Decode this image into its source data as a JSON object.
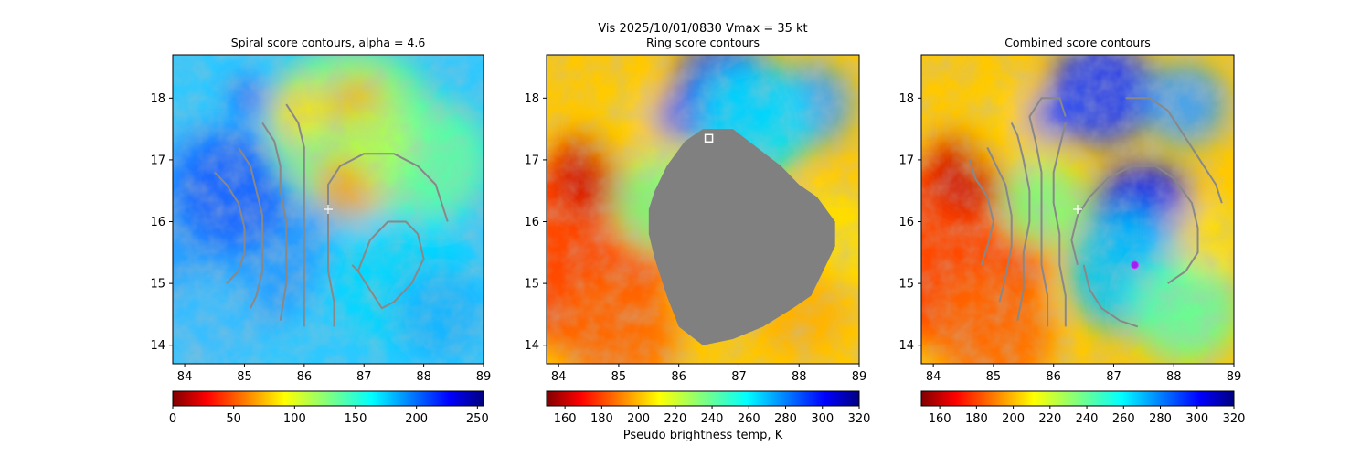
{
  "figure": {
    "suptitle_line1": "Vis  2025/10/01/0830    Vmax = 35 kt"
  },
  "chart_data": [
    {
      "type": "heatmap",
      "title": "Spiral score contours, alpha =  4.6",
      "xlim": [
        83.8,
        89.0
      ],
      "ylim": [
        13.7,
        18.7
      ],
      "xticks": [
        "84",
        "85",
        "86",
        "87",
        "88",
        "89"
      ],
      "yticks": [
        "14",
        "15",
        "16",
        "17",
        "18"
      ],
      "field": "visible/brightness image",
      "colormap": "jet_r",
      "colorbar": {
        "range": [
          0,
          255
        ],
        "ticks": [
          "0",
          "50",
          "100",
          "150",
          "200",
          "250"
        ],
        "label": ""
      },
      "markers": [
        {
          "type": "center_plus",
          "x": 86.4,
          "y": 16.2,
          "color": "#ffffff"
        }
      ],
      "contours": [
        {
          "color": "#888888",
          "points": [
            [
              84.5,
              16.8
            ],
            [
              84.7,
              16.6
            ],
            [
              84.9,
              16.3
            ],
            [
              85.0,
              15.9
            ],
            [
              85.0,
              15.5
            ],
            [
              84.9,
              15.2
            ],
            [
              84.7,
              15.0
            ]
          ]
        },
        {
          "color": "#888888",
          "points": [
            [
              84.9,
              17.2
            ],
            [
              85.1,
              16.9
            ],
            [
              85.2,
              16.5
            ],
            [
              85.3,
              16.1
            ],
            [
              85.3,
              15.6
            ],
            [
              85.3,
              15.2
            ],
            [
              85.2,
              14.8
            ],
            [
              85.1,
              14.6
            ]
          ]
        },
        {
          "color": "#888888",
          "points": [
            [
              85.3,
              17.6
            ],
            [
              85.5,
              17.3
            ],
            [
              85.6,
              16.9
            ],
            [
              85.6,
              16.5
            ],
            [
              85.7,
              16.0
            ],
            [
              85.7,
              15.5
            ],
            [
              85.7,
              15.0
            ],
            [
              85.6,
              14.4
            ]
          ]
        },
        {
          "color": "#888888",
          "points": [
            [
              85.7,
              17.9
            ],
            [
              85.9,
              17.6
            ],
            [
              86.0,
              17.2
            ],
            [
              86.0,
              16.8
            ],
            [
              86.0,
              16.3
            ],
            [
              86.0,
              15.8
            ],
            [
              86.0,
              15.3
            ],
            [
              86.0,
              14.8
            ],
            [
              86.0,
              14.3
            ]
          ]
        },
        {
          "color": "#888888",
          "points": [
            [
              86.5,
              14.3
            ],
            [
              86.5,
              14.7
            ],
            [
              86.4,
              15.2
            ],
            [
              86.4,
              15.7
            ],
            [
              86.4,
              16.2
            ],
            [
              86.4,
              16.6
            ],
            [
              86.6,
              16.9
            ],
            [
              87.0,
              17.1
            ],
            [
              87.5,
              17.1
            ],
            [
              87.9,
              16.9
            ],
            [
              88.2,
              16.6
            ],
            [
              88.3,
              16.3
            ],
            [
              88.4,
              16.0
            ]
          ]
        },
        {
          "color": "#888888",
          "points": [
            [
              86.9,
              15.2
            ],
            [
              87.1,
              15.7
            ],
            [
              87.4,
              16.0
            ],
            [
              87.7,
              16.0
            ],
            [
              87.9,
              15.8
            ],
            [
              88.0,
              15.4
            ],
            [
              87.8,
              15.0
            ],
            [
              87.5,
              14.7
            ],
            [
              87.3,
              14.6
            ],
            [
              87.1,
              14.9
            ],
            [
              86.9,
              15.2
            ],
            [
              86.8,
              15.3
            ]
          ]
        }
      ]
    },
    {
      "type": "heatmap",
      "title": "Ring score contours",
      "xlim": [
        83.8,
        89.0
      ],
      "ylim": [
        13.7,
        18.7
      ],
      "xticks": [
        "84",
        "85",
        "86",
        "87",
        "88",
        "89"
      ],
      "yticks": [
        "14",
        "15",
        "16",
        "17",
        "18"
      ],
      "field": "pseudo brightness temperature (K)",
      "colormap": "jet_r",
      "mask": {
        "color": "#808080",
        "description": "grey ring-score region",
        "polygon": [
          [
            86.4,
            17.5
          ],
          [
            86.9,
            17.5
          ],
          [
            87.3,
            17.2
          ],
          [
            87.7,
            16.9
          ],
          [
            88.0,
            16.6
          ],
          [
            88.3,
            16.4
          ],
          [
            88.6,
            16.0
          ],
          [
            88.6,
            15.6
          ],
          [
            88.4,
            15.2
          ],
          [
            88.2,
            14.8
          ],
          [
            87.9,
            14.6
          ],
          [
            87.4,
            14.3
          ],
          [
            86.9,
            14.1
          ],
          [
            86.4,
            14.0
          ],
          [
            86.0,
            14.3
          ],
          [
            85.8,
            14.8
          ],
          [
            85.6,
            15.4
          ],
          [
            85.5,
            15.8
          ],
          [
            85.5,
            16.2
          ],
          [
            85.6,
            16.5
          ],
          [
            85.8,
            16.9
          ],
          [
            86.1,
            17.3
          ]
        ]
      },
      "markers": [
        {
          "type": "square",
          "x": 86.5,
          "y": 17.35,
          "color": "#ffffff"
        }
      ],
      "colorbar": {
        "range": [
          150,
          320
        ],
        "ticks": [
          "160",
          "180",
          "200",
          "220",
          "240",
          "260",
          "280",
          "300",
          "320"
        ],
        "label": "Pseudo brightness temp, K"
      }
    },
    {
      "type": "heatmap",
      "title": "Combined score contours",
      "xlim": [
        83.8,
        89.0
      ],
      "ylim": [
        13.7,
        18.7
      ],
      "xticks": [
        "84",
        "85",
        "86",
        "87",
        "88",
        "89"
      ],
      "yticks": [
        "14",
        "15",
        "16",
        "17",
        "18"
      ],
      "field": "pseudo brightness temperature (K)",
      "colormap": "jet_r",
      "colorbar": {
        "range": [
          150,
          320
        ],
        "ticks": [
          "160",
          "180",
          "200",
          "220",
          "240",
          "260",
          "280",
          "300",
          "320"
        ],
        "label": ""
      },
      "markers": [
        {
          "type": "center_plus",
          "x": 86.4,
          "y": 16.2,
          "color": "#ffffff"
        },
        {
          "type": "circle",
          "x": 87.35,
          "y": 15.3,
          "color": "#a020f0"
        }
      ],
      "contours": [
        {
          "color": "#888888",
          "points": [
            [
              84.8,
              15.3
            ],
            [
              84.9,
              15.6
            ],
            [
              85.0,
              16.0
            ],
            [
              84.9,
              16.4
            ],
            [
              84.7,
              16.7
            ],
            [
              84.6,
              17.0
            ]
          ]
        },
        {
          "color": "#888888",
          "points": [
            [
              85.1,
              14.7
            ],
            [
              85.2,
              15.1
            ],
            [
              85.3,
              15.6
            ],
            [
              85.3,
              16.1
            ],
            [
              85.2,
              16.6
            ],
            [
              85.0,
              17.0
            ],
            [
              84.9,
              17.2
            ]
          ]
        },
        {
          "color": "#888888",
          "points": [
            [
              85.4,
              14.4
            ],
            [
              85.5,
              14.9
            ],
            [
              85.5,
              15.5
            ],
            [
              85.6,
              16.0
            ],
            [
              85.6,
              16.5
            ],
            [
              85.5,
              17.0
            ],
            [
              85.4,
              17.4
            ],
            [
              85.3,
              17.6
            ]
          ]
        },
        {
          "color": "#888888",
          "points": [
            [
              85.9,
              14.3
            ],
            [
              85.9,
              14.8
            ],
            [
              85.8,
              15.3
            ],
            [
              85.8,
              15.8
            ],
            [
              85.8,
              16.3
            ],
            [
              85.8,
              16.8
            ],
            [
              85.7,
              17.3
            ],
            [
              85.6,
              17.7
            ],
            [
              85.8,
              18.0
            ],
            [
              86.1,
              18.0
            ],
            [
              86.2,
              17.7
            ]
          ]
        },
        {
          "color": "#888888",
          "points": [
            [
              86.2,
              14.3
            ],
            [
              86.2,
              14.8
            ],
            [
              86.1,
              15.3
            ],
            [
              86.1,
              15.8
            ],
            [
              86.0,
              16.3
            ],
            [
              86.0,
              16.8
            ],
            [
              86.1,
              17.2
            ],
            [
              86.2,
              17.6
            ]
          ]
        },
        {
          "color": "#888888",
          "points": [
            [
              86.5,
              15.3
            ],
            [
              86.6,
              14.9
            ],
            [
              86.8,
              14.6
            ],
            [
              87.1,
              14.4
            ],
            [
              87.4,
              14.3
            ]
          ]
        },
        {
          "color": "#888888",
          "points": [
            [
              87.9,
              15.0
            ],
            [
              88.2,
              15.2
            ],
            [
              88.4,
              15.5
            ],
            [
              88.4,
              15.9
            ],
            [
              88.3,
              16.3
            ],
            [
              88.0,
              16.7
            ],
            [
              87.7,
              16.9
            ],
            [
              87.3,
              16.9
            ],
            [
              86.9,
              16.7
            ],
            [
              86.6,
              16.4
            ],
            [
              86.4,
              16.1
            ],
            [
              86.3,
              15.7
            ],
            [
              86.4,
              15.3
            ]
          ]
        },
        {
          "color": "#888888",
          "points": [
            [
              87.2,
              18.0
            ],
            [
              87.6,
              18.0
            ],
            [
              87.9,
              17.8
            ],
            [
              88.1,
              17.5
            ],
            [
              88.3,
              17.2
            ],
            [
              88.5,
              16.9
            ],
            [
              88.7,
              16.6
            ],
            [
              88.8,
              16.3
            ]
          ]
        }
      ]
    }
  ]
}
